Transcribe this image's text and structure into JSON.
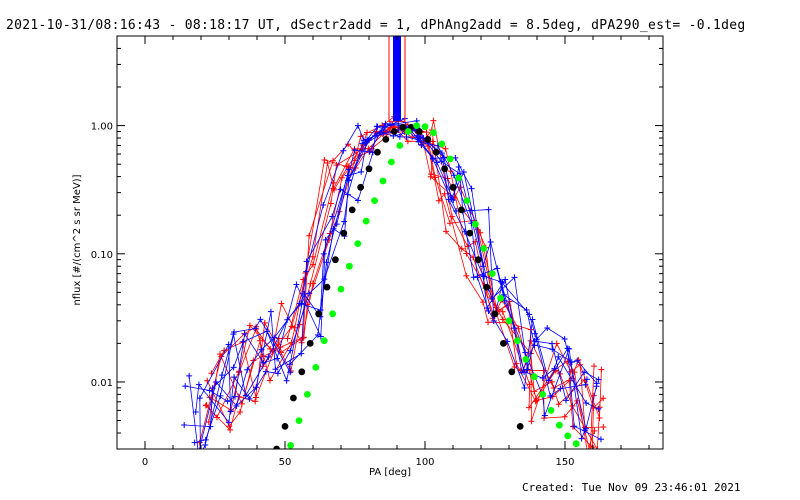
{
  "header": {
    "title": "2021-10-31/08:16:43 - 08:18:17 UT, dSectr2add = 1, dPhAng2add = 8.5deg, dPA290_est= -0.1deg",
    "created": "Created: Tue Nov 09 23:46:01 2021"
  },
  "chart_data": {
    "type": "scatter",
    "title": "2021-10-31/08:16:43 - 08:18:17 UT, dSectr2add = 1, dPhAng2add = 8.5deg, dPA290_est= -0.1deg",
    "xlabel": "PA [deg]",
    "ylabel": "nflux [#/(cm^2 s sr MeV)]",
    "xlim": [
      -10,
      185
    ],
    "ylim": [
      0.003,
      5.0
    ],
    "yscale": "log",
    "x_ticks": [
      0,
      50,
      100,
      150
    ],
    "x_tick_labels": [
      "0",
      "50",
      "100",
      "150"
    ],
    "y_ticks": [
      0.01,
      0.1,
      1.0
    ],
    "y_tick_labels": [
      "0.01",
      "0.10",
      "1.00"
    ],
    "grid": false,
    "marker_vertical": {
      "x": 90,
      "y_from": 1.08,
      "y_to": 5.0
    },
    "series": [
      {
        "style": "lines+plus",
        "color": "#ff0000",
        "points": [
          [
            22,
            0.006
          ],
          [
            28,
            0.008
          ],
          [
            34,
            0.012
          ],
          [
            40,
            0.015
          ],
          [
            45,
            0.02
          ],
          [
            50,
            0.026
          ],
          [
            55,
            0.04
          ],
          [
            60,
            0.09
          ],
          [
            65,
            0.25
          ],
          [
            70,
            0.4
          ],
          [
            75,
            0.55
          ],
          [
            80,
            0.75
          ],
          [
            85,
            0.92
          ],
          [
            90,
            1.0
          ],
          [
            95,
            0.9
          ],
          [
            100,
            0.75
          ],
          [
            105,
            0.5
          ],
          [
            110,
            0.3
          ],
          [
            115,
            0.15
          ],
          [
            120,
            0.08
          ],
          [
            125,
            0.04
          ],
          [
            130,
            0.022
          ],
          [
            135,
            0.014
          ],
          [
            140,
            0.011
          ],
          [
            145,
            0.009
          ],
          [
            150,
            0.008
          ],
          [
            155,
            0.007
          ],
          [
            160,
            0.006
          ],
          [
            163,
            0.009
          ]
        ]
      },
      {
        "style": "lines+plus",
        "color": "#0000ff",
        "points": [
          [
            17,
            0.005
          ],
          [
            22,
            0.006
          ],
          [
            27,
            0.009
          ],
          [
            32,
            0.012
          ],
          [
            38,
            0.013
          ],
          [
            44,
            0.018
          ],
          [
            49,
            0.02
          ],
          [
            54,
            0.03
          ],
          [
            60,
            0.05
          ],
          [
            65,
            0.12
          ],
          [
            70,
            0.3
          ],
          [
            75,
            0.5
          ],
          [
            80,
            0.7
          ],
          [
            85,
            0.88
          ],
          [
            90,
            0.98
          ],
          [
            95,
            0.92
          ],
          [
            100,
            0.8
          ],
          [
            105,
            0.6
          ],
          [
            110,
            0.4
          ],
          [
            115,
            0.22
          ],
          [
            120,
            0.12
          ],
          [
            125,
            0.06
          ],
          [
            130,
            0.03
          ],
          [
            135,
            0.02
          ],
          [
            140,
            0.015
          ],
          [
            145,
            0.012
          ],
          [
            150,
            0.01
          ],
          [
            155,
            0.008
          ],
          [
            160,
            0.007
          ]
        ]
      },
      {
        "style": "filled-circles",
        "color": "#000000",
        "x": [
          47,
          50,
          53,
          56,
          59,
          62,
          65,
          68,
          71,
          74,
          77,
          80,
          83,
          86,
          89,
          92,
          95,
          98,
          101,
          104,
          107,
          110,
          113,
          116,
          119,
          122,
          125,
          128,
          131,
          134
        ],
        "y": [
          0.003,
          0.0045,
          0.0075,
          0.012,
          0.02,
          0.034,
          0.055,
          0.09,
          0.145,
          0.22,
          0.33,
          0.46,
          0.62,
          0.78,
          0.9,
          0.97,
          0.97,
          0.9,
          0.78,
          0.62,
          0.46,
          0.33,
          0.22,
          0.145,
          0.09,
          0.055,
          0.034,
          0.02,
          0.012,
          0.0045
        ]
      },
      {
        "style": "filled-circles",
        "color": "#00ff00",
        "x": [
          52,
          55,
          58,
          61,
          64,
          67,
          70,
          73,
          76,
          79,
          82,
          85,
          88,
          91,
          94,
          97,
          100,
          103,
          106,
          109,
          112,
          115,
          118,
          121,
          124,
          127,
          130,
          133,
          136,
          139,
          142,
          145,
          148,
          151,
          154
        ],
        "y": [
          0.0032,
          0.005,
          0.008,
          0.013,
          0.021,
          0.034,
          0.053,
          0.08,
          0.12,
          0.18,
          0.26,
          0.37,
          0.52,
          0.7,
          0.9,
          1.0,
          0.98,
          0.88,
          0.72,
          0.55,
          0.39,
          0.26,
          0.17,
          0.11,
          0.07,
          0.045,
          0.03,
          0.021,
          0.015,
          0.011,
          0.008,
          0.006,
          0.0046,
          0.0038,
          0.0033
        ]
      }
    ]
  }
}
